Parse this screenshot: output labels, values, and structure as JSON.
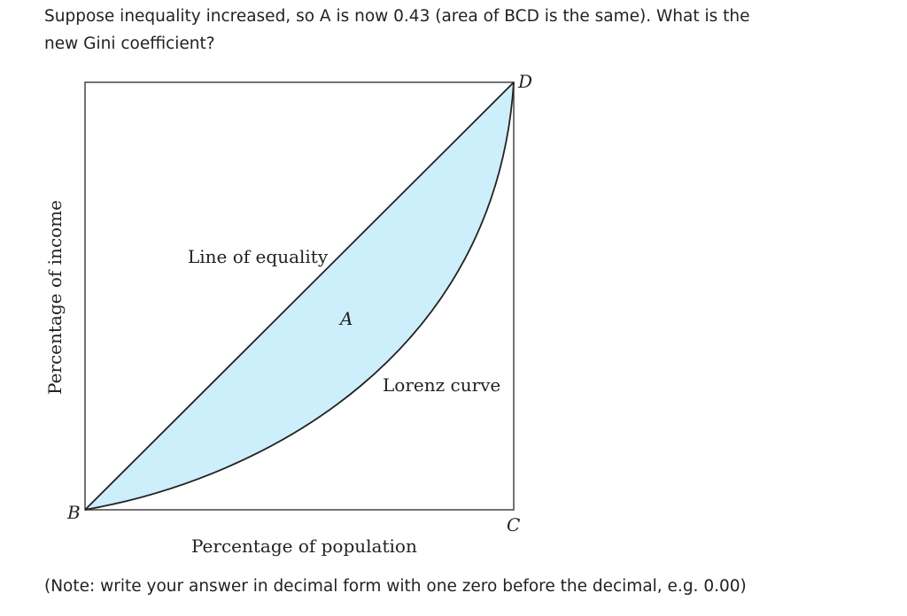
{
  "question": "Suppose inequality increased, so A is now 0.43 (area of BCD is the same). What is the new Gini coefficient?",
  "diagram": {
    "y_axis_label": "Percentage of income",
    "x_axis_label": "Percentage of population",
    "line_label": "Line of equality",
    "curve_label": "Lorenz curve",
    "area_label": "A",
    "point_b": "B",
    "point_c": "C",
    "point_d": "D"
  },
  "note": "(Note: write your answer in decimal form with one zero before the decimal, e.g. 0.00)"
}
